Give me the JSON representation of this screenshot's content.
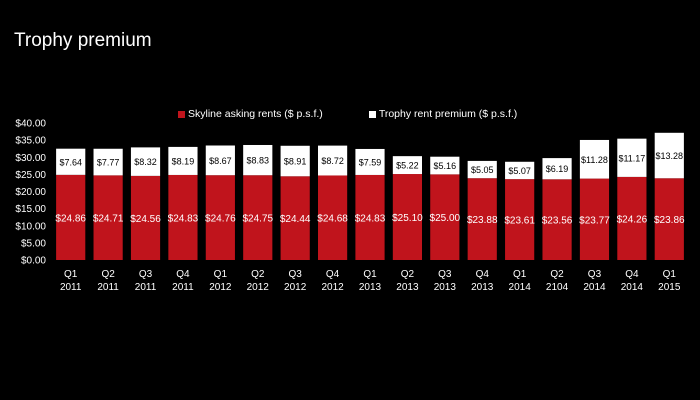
{
  "chart_data": {
    "type": "bar",
    "stacked": true,
    "title": "Trophy premium",
    "categories": [
      [
        "Q1",
        "2011"
      ],
      [
        "Q2",
        "2011"
      ],
      [
        "Q3",
        "2011"
      ],
      [
        "Q4",
        "2011"
      ],
      [
        "Q1",
        "2012"
      ],
      [
        "Q2",
        "2012"
      ],
      [
        "Q3",
        "2012"
      ],
      [
        "Q4",
        "2012"
      ],
      [
        "Q1",
        "2013"
      ],
      [
        "Q2",
        "2013"
      ],
      [
        "Q3",
        "2013"
      ],
      [
        "Q4",
        "2013"
      ],
      [
        "Q1",
        "2014"
      ],
      [
        "Q2",
        "2104"
      ],
      [
        "Q3",
        "2014"
      ],
      [
        "Q4",
        "2014"
      ],
      [
        "Q1",
        "2015"
      ]
    ],
    "series": [
      {
        "name": "Skyline asking rents ($ p.s.f.)",
        "color": "#c0141c",
        "values": [
          24.86,
          24.71,
          24.56,
          24.83,
          24.76,
          24.75,
          24.44,
          24.68,
          24.83,
          25.1,
          25.0,
          23.88,
          23.61,
          23.56,
          23.77,
          24.26,
          23.86
        ],
        "labels": [
          "$24.86",
          "$24.71",
          "$24.56",
          "$24.83",
          "$24.76",
          "$24.75",
          "$24.44",
          "$24.68",
          "$24.83",
          "$25.10",
          "$25.00",
          "$23.88",
          "$23.61",
          "$23.56",
          "$23.77",
          "$24.26",
          "$23.86"
        ]
      },
      {
        "name": "Trophy rent premium ($ p.s.f.)",
        "color": "#ffffff",
        "values": [
          7.64,
          7.77,
          8.32,
          8.19,
          8.67,
          8.83,
          8.91,
          8.72,
          7.59,
          5.22,
          5.16,
          5.05,
          5.07,
          6.19,
          11.28,
          11.17,
          13.28
        ],
        "labels": [
          "$7.64",
          "$7.77",
          "$8.32",
          "$8.19",
          "$8.67",
          "$8.83",
          "$8.91",
          "$8.72",
          "$7.59",
          "$5.22",
          "$5.16",
          "$5.05",
          "$5.07",
          "$6.19",
          "$11.28",
          "$11.17",
          "$13.28"
        ]
      }
    ],
    "ylim": [
      0,
      40
    ],
    "yticks": [
      0,
      5,
      10,
      15,
      20,
      25,
      30,
      35,
      40
    ],
    "ytick_labels": [
      "$0.00",
      "$5.00",
      "$10.00",
      "$15.00",
      "$20.00",
      "$25.00",
      "$30.00",
      "$35.00",
      "$40.00"
    ],
    "legend_position": "top",
    "grid": false
  }
}
